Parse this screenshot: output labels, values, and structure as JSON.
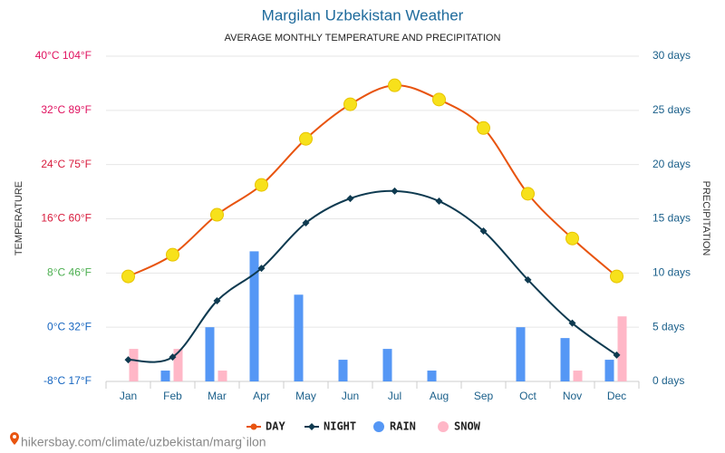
{
  "chart_data": {
    "type": "combo",
    "title": "Margilan Uzbekistan Weather",
    "subtitle": "AVERAGE MONTHLY TEMPERATURE AND PRECIPITATION",
    "y_label": "TEMPERATURE",
    "y2_label": "PRECIPITATION",
    "source": "hikersbay.com/climate/uzbekistan/marg`ilon",
    "categories": [
      "Jan",
      "Feb",
      "Mar",
      "Apr",
      "May",
      "Jun",
      "Jul",
      "Aug",
      "Sep",
      "Oct",
      "Nov",
      "Dec"
    ],
    "series": [
      {
        "name": "DAY",
        "type": "line",
        "color": "#e8540f",
        "values": [
          7.5,
          10.7,
          16.6,
          21,
          27.8,
          32.9,
          35.7,
          33.6,
          29.4,
          19.7,
          13.1,
          7.5
        ]
      },
      {
        "name": "NIGHT",
        "type": "line",
        "color": "#0e3a50",
        "values": [
          -4.8,
          -4.4,
          3.9,
          8.7,
          15.4,
          19,
          20.1,
          18.6,
          14.2,
          7,
          0.6,
          -4.1
        ]
      },
      {
        "name": "RAIN",
        "type": "bar",
        "axis": "y2",
        "color": "#5597f5",
        "values": [
          0,
          1,
          5,
          12,
          8,
          2,
          3,
          1,
          0,
          5,
          4,
          2
        ]
      },
      {
        "name": "SNOW",
        "type": "bar",
        "axis": "y2",
        "color": "#ffb7c7",
        "values": [
          3,
          3,
          1,
          0,
          0,
          0,
          0,
          0,
          0,
          0,
          1,
          6
        ]
      }
    ],
    "ylim": [
      -8,
      40
    ],
    "yticks": [
      {
        "value": -8,
        "label": "-8°C 17°F"
      },
      {
        "value": 0,
        "label": "0°C 32°F"
      },
      {
        "value": 8,
        "label": "8°C 46°F"
      },
      {
        "value": 16,
        "label": "16°C 60°F"
      },
      {
        "value": 24,
        "label": "24°C 75°F"
      },
      {
        "value": 32,
        "label": "32°C 89°F"
      },
      {
        "value": 40,
        "label": "40°C 104°F"
      }
    ],
    "ytick_colors": [
      "#1565c0",
      "#1565c0",
      "#4caf50",
      "#d81b3c",
      "#d81b3c",
      "#e0115f",
      "#e0115f"
    ],
    "y2lim": [
      0,
      30
    ],
    "y2ticks": [
      {
        "value": 0,
        "label": "0 days"
      },
      {
        "value": 5,
        "label": "5 days"
      },
      {
        "value": 10,
        "label": "10 days"
      },
      {
        "value": 15,
        "label": "15 days"
      },
      {
        "value": 20,
        "label": "20 days"
      },
      {
        "value": 25,
        "label": "25 days"
      },
      {
        "value": 30,
        "label": "30 days"
      }
    ],
    "grid": true
  }
}
